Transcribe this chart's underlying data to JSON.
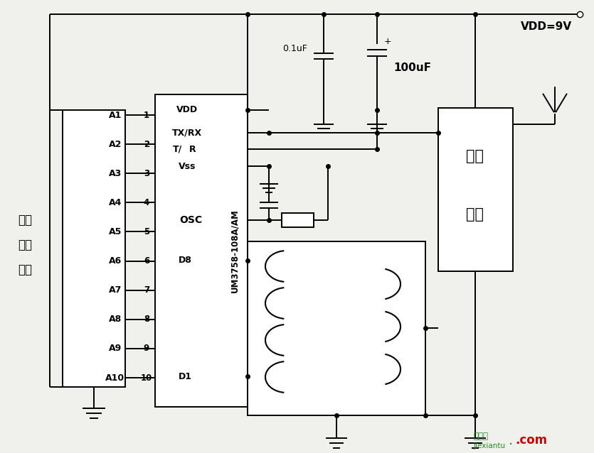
{
  "bg_color": "#f0f0ec",
  "line_color": "#000000",
  "vdd_label": "VDD=9V",
  "cap1_label": "0.1uF",
  "cap2_label": "100uF",
  "ic_label": "UM3758-108A/AM",
  "address_labels": [
    "A1",
    "A2",
    "A3",
    "A4",
    "A5",
    "A6",
    "A7",
    "A8",
    "A9",
    "A10"
  ],
  "pin_numbers": [
    "1",
    "2",
    "3",
    "4",
    "5",
    "6",
    "7",
    "8",
    "9",
    "10"
  ],
  "left_label_lines": [
    "三态",
    "编码",
    "开关"
  ],
  "tx_box_labels": [
    "发射",
    "电路"
  ],
  "watermark_cn": "接线图",
  "watermark_en": "jiexiantu",
  "watermark_com": ".com"
}
